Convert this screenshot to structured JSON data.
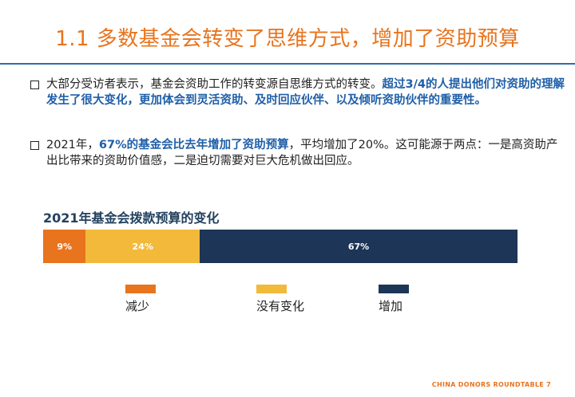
{
  "slide": {
    "title": "1.1 多数基金会转变了思维方式，增加了资助预算",
    "footer": "CHINA DONORS ROUNDTABLE   7"
  },
  "bullets": [
    {
      "plain": "大部分受访者表示，基金会资助工作的转变源自思维方式的转变。",
      "highlight": "超过3/4的人提出他们对资助的理解发生了很大变化，更加体会到灵活资助、及时回应伙伴、以及倾听资助伙伴的重要性。"
    },
    {
      "plain_before": "2021年，",
      "highlight": "67%的基金会比去年增加了资助预算",
      "plain_after": "，平均增加了20%。这可能源于两点：一是高资助产出比带来的资助价值感，二是迫切需要对巨大危机做出回应。"
    }
  ],
  "colors": {
    "title": "#E8741E",
    "rule": "#2F6DA6",
    "highlight": "#1F5FA8",
    "decrease": "#E8741E",
    "nochange": "#F2B93B",
    "increase": "#1D3557"
  },
  "chart_data": {
    "type": "bar",
    "orientation": "horizontal-stacked",
    "title": "2021年基金会拨款预算的变化",
    "categories": [
      "减少",
      "没有变化",
      "增加"
    ],
    "values": [
      9,
      24,
      67
    ],
    "value_labels": [
      "9%",
      "24%",
      "67%"
    ],
    "unit": "%",
    "legend": "bottom"
  }
}
